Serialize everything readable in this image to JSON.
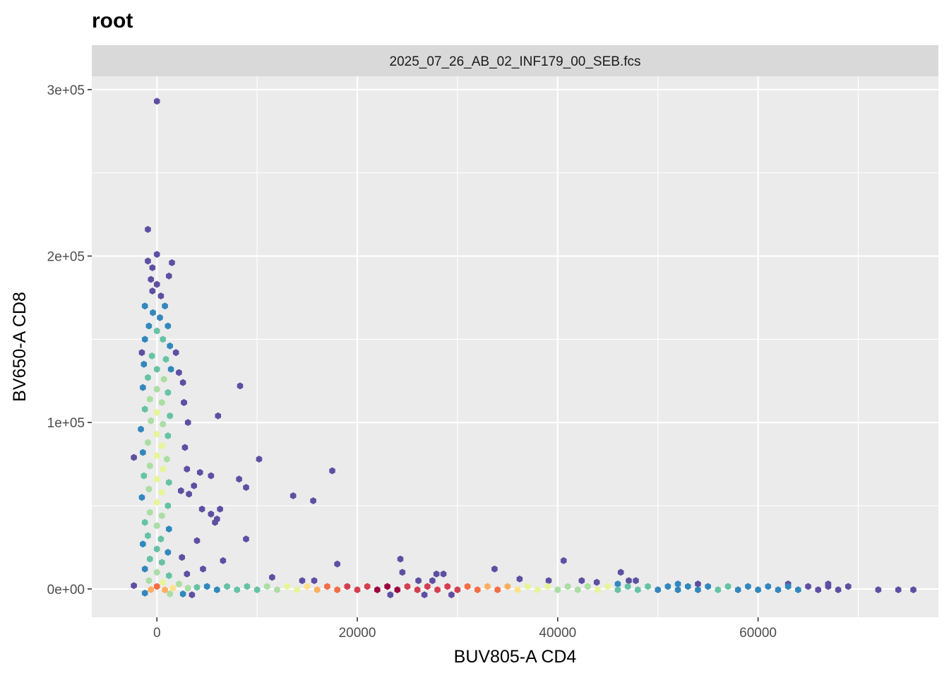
{
  "chart_data": {
    "type": "hexbin",
    "title": "root",
    "facet_label": "2025_07_26_AB_02_INF179_00_SEB.fcs",
    "xlabel": "BUV805-A CD4",
    "ylabel": "BV650-A CD8",
    "xlim": [
      -6500,
      78000
    ],
    "ylim": [
      -17000,
      308000
    ],
    "x_ticks": [
      0,
      20000,
      40000,
      60000
    ],
    "x_tick_labels": [
      "0",
      "20000",
      "40000",
      "60000"
    ],
    "y_ticks": [
      0,
      100000,
      200000,
      300000
    ],
    "y_tick_labels": [
      "0e+00",
      "1e+05",
      "2e+05",
      "3e+05"
    ],
    "grid": true,
    "legend": "none",
    "palette": [
      "#5E4FA2",
      "#3288BD",
      "#66C2A5",
      "#ABDDA4",
      "#E6F598",
      "#FEE08B",
      "#FDAE61",
      "#F46D43",
      "#D53E4F",
      "#9E0142"
    ],
    "density_scale_max": 9,
    "points": [
      [
        0,
        293000,
        0
      ],
      [
        -900,
        216000,
        0
      ],
      [
        0,
        201000,
        0
      ],
      [
        -900,
        197000,
        0
      ],
      [
        -450,
        193000,
        0
      ],
      [
        1500,
        196000,
        0
      ],
      [
        1200,
        188000,
        0
      ],
      [
        -600,
        186000,
        0
      ],
      [
        0,
        183000,
        0
      ],
      [
        -450,
        179000,
        0
      ],
      [
        400,
        176000,
        0
      ],
      [
        800,
        170000,
        1
      ],
      [
        -1200,
        170000,
        1
      ],
      [
        -400,
        166000,
        1
      ],
      [
        300,
        163000,
        1
      ],
      [
        -800,
        158000,
        1
      ],
      [
        1100,
        158000,
        1
      ],
      [
        0,
        155000,
        2
      ],
      [
        -1200,
        150000,
        1
      ],
      [
        600,
        150000,
        2
      ],
      [
        1300,
        146000,
        1
      ],
      [
        -1500,
        142000,
        0
      ],
      [
        -500,
        140000,
        2
      ],
      [
        900,
        138000,
        2
      ],
      [
        1900,
        142000,
        0
      ],
      [
        -1300,
        135000,
        1
      ],
      [
        0,
        132000,
        2
      ],
      [
        1400,
        132000,
        1
      ],
      [
        -900,
        127000,
        2
      ],
      [
        700,
        126000,
        3
      ],
      [
        2200,
        130000,
        0
      ],
      [
        -1400,
        121000,
        1
      ],
      [
        0,
        120000,
        3
      ],
      [
        1100,
        118000,
        2
      ],
      [
        -700,
        114000,
        3
      ],
      [
        500,
        112000,
        3
      ],
      [
        2700,
        112000,
        0
      ],
      [
        -1200,
        108000,
        2
      ],
      [
        0,
        106000,
        4
      ],
      [
        1300,
        104000,
        2
      ],
      [
        -600,
        101000,
        3
      ],
      [
        600,
        99000,
        3
      ],
      [
        -1600,
        96000,
        1
      ],
      [
        0,
        93000,
        4
      ],
      [
        1100,
        92000,
        2
      ],
      [
        -900,
        88000,
        3
      ],
      [
        500,
        86000,
        4
      ],
      [
        -1400,
        82000,
        1
      ],
      [
        0,
        80000,
        4
      ],
      [
        1000,
        78000,
        3
      ],
      [
        -2300,
        79000,
        0
      ],
      [
        -700,
        74000,
        3
      ],
      [
        600,
        72000,
        4
      ],
      [
        -1300,
        68000,
        2
      ],
      [
        0,
        66000,
        4
      ],
      [
        1200,
        64000,
        2
      ],
      [
        -800,
        60000,
        3
      ],
      [
        500,
        58000,
        4
      ],
      [
        2400,
        59000,
        0
      ],
      [
        -1500,
        55000,
        1
      ],
      [
        0,
        52000,
        4
      ],
      [
        1100,
        50000,
        2
      ],
      [
        -700,
        46000,
        3
      ],
      [
        500,
        44000,
        3
      ],
      [
        -1200,
        40000,
        2
      ],
      [
        0,
        38000,
        3
      ],
      [
        1200,
        36000,
        1
      ],
      [
        -900,
        32000,
        2
      ],
      [
        400,
        30000,
        2
      ],
      [
        -1400,
        27000,
        1
      ],
      [
        0,
        24000,
        2
      ],
      [
        1100,
        22000,
        1
      ],
      [
        -700,
        18000,
        2
      ],
      [
        500,
        16000,
        2
      ],
      [
        -1200,
        12000,
        1
      ],
      [
        0,
        10000,
        3
      ],
      [
        1200,
        8000,
        2
      ],
      [
        -800,
        5000,
        3
      ],
      [
        600,
        4000,
        4
      ],
      [
        2200,
        3000,
        3
      ],
      [
        -2300,
        2000,
        0
      ],
      [
        0,
        1500,
        7
      ],
      [
        -600,
        -400,
        6
      ],
      [
        800,
        -600,
        6
      ],
      [
        1600,
        500,
        5
      ],
      [
        3100,
        500,
        3
      ],
      [
        -1200,
        -2500,
        1
      ],
      [
        1300,
        -3000,
        3
      ],
      [
        2600,
        -3000,
        1
      ],
      [
        3500,
        -3500,
        0
      ],
      [
        4000,
        1000,
        2
      ],
      [
        3000,
        9000,
        0
      ],
      [
        2500,
        19000,
        0
      ],
      [
        4000,
        29000,
        0
      ],
      [
        4500,
        48000,
        0
      ],
      [
        3200,
        57000,
        0
      ],
      [
        3700,
        62000,
        0
      ],
      [
        3000,
        72000,
        0
      ],
      [
        2800,
        85000,
        0
      ],
      [
        3100,
        100000,
        0
      ],
      [
        2700,
        112000,
        0
      ],
      [
        2600,
        124000,
        0
      ],
      [
        4300,
        70000,
        0
      ],
      [
        5400,
        45000,
        0
      ],
      [
        5400,
        68000,
        0
      ],
      [
        6300,
        48000,
        0
      ],
      [
        5800,
        40000,
        0
      ],
      [
        6100,
        104000,
        0
      ],
      [
        6000,
        42000,
        0
      ],
      [
        8300,
        122000,
        0
      ],
      [
        8200,
        66000,
        0
      ],
      [
        8900,
        61000,
        0
      ],
      [
        10200,
        78000,
        0
      ],
      [
        8900,
        30000,
        0
      ],
      [
        13600,
        56000,
        0
      ],
      [
        15600,
        53000,
        0
      ],
      [
        17500,
        71000,
        0
      ],
      [
        4600,
        12000,
        0
      ],
      [
        6600,
        17000,
        0
      ],
      [
        11500,
        7000,
        0
      ],
      [
        18000,
        15000,
        0
      ],
      [
        24300,
        18000,
        0
      ],
      [
        24500,
        10000,
        0
      ],
      [
        27900,
        9000,
        0
      ],
      [
        28600,
        9000,
        0
      ],
      [
        33700,
        12000,
        0
      ],
      [
        40600,
        17000,
        0
      ],
      [
        46300,
        10000,
        0
      ],
      [
        14500,
        5000,
        0
      ],
      [
        15700,
        5000,
        0
      ],
      [
        26100,
        5000,
        0
      ],
      [
        27500,
        5000,
        0
      ],
      [
        36200,
        6000,
        0
      ],
      [
        39100,
        5000,
        0
      ],
      [
        42400,
        5000,
        0
      ],
      [
        47100,
        5000,
        0
      ],
      [
        47800,
        5000,
        0
      ],
      [
        23300,
        -3500,
        0
      ],
      [
        26700,
        -3500,
        0
      ],
      [
        29400,
        -3500,
        0
      ],
      [
        43900,
        4000,
        0
      ],
      [
        5000,
        1500,
        1
      ],
      [
        7000,
        1500,
        2
      ],
      [
        9000,
        1500,
        2
      ],
      [
        11000,
        1500,
        3
      ],
      [
        13000,
        1500,
        4
      ],
      [
        15000,
        1500,
        5
      ],
      [
        17000,
        1500,
        7
      ],
      [
        19000,
        1500,
        8
      ],
      [
        21000,
        1500,
        8
      ],
      [
        23000,
        1500,
        9
      ],
      [
        25000,
        1500,
        8
      ],
      [
        27000,
        1500,
        8
      ],
      [
        29000,
        1500,
        8
      ],
      [
        31000,
        1500,
        7
      ],
      [
        33000,
        1500,
        6
      ],
      [
        35000,
        1500,
        6
      ],
      [
        37000,
        1500,
        4
      ],
      [
        39000,
        1500,
        4
      ],
      [
        41000,
        1500,
        3
      ],
      [
        43000,
        1500,
        3
      ],
      [
        45000,
        1500,
        4
      ],
      [
        47000,
        1500,
        2
      ],
      [
        49000,
        1500,
        2
      ],
      [
        51000,
        1500,
        1
      ],
      [
        53000,
        1500,
        1
      ],
      [
        55000,
        1500,
        1
      ],
      [
        57000,
        1500,
        2
      ],
      [
        59000,
        1500,
        1
      ],
      [
        61000,
        1500,
        1
      ],
      [
        63000,
        1500,
        1
      ],
      [
        65000,
        1500,
        0
      ],
      [
        67000,
        1500,
        0
      ],
      [
        69000,
        1500,
        0
      ],
      [
        6000,
        -500,
        1
      ],
      [
        8000,
        -500,
        2
      ],
      [
        10000,
        -500,
        2
      ],
      [
        12000,
        -500,
        3
      ],
      [
        14000,
        -500,
        4
      ],
      [
        16000,
        -500,
        6
      ],
      [
        18000,
        -500,
        7
      ],
      [
        20000,
        -500,
        8
      ],
      [
        22000,
        -500,
        9
      ],
      [
        24000,
        -500,
        9
      ],
      [
        26000,
        -500,
        8
      ],
      [
        28000,
        -500,
        8
      ],
      [
        30000,
        -500,
        8
      ],
      [
        32000,
        -500,
        7
      ],
      [
        34000,
        -500,
        7
      ],
      [
        36000,
        -500,
        5
      ],
      [
        38000,
        -500,
        4
      ],
      [
        40000,
        -500,
        3
      ],
      [
        42000,
        -500,
        3
      ],
      [
        44000,
        -500,
        4
      ],
      [
        46000,
        -500,
        2
      ],
      [
        48000,
        -500,
        2
      ],
      [
        50000,
        -500,
        1
      ],
      [
        52000,
        -500,
        1
      ],
      [
        54000,
        -500,
        1
      ],
      [
        56000,
        -500,
        2
      ],
      [
        58000,
        -500,
        1
      ],
      [
        60000,
        -500,
        1
      ],
      [
        62000,
        -500,
        1
      ],
      [
        64000,
        -500,
        1
      ],
      [
        66000,
        -500,
        0
      ],
      [
        68000,
        -500,
        0
      ],
      [
        72000,
        -500,
        0
      ],
      [
        74000,
        -500,
        0
      ],
      [
        75500,
        -500,
        0
      ],
      [
        63000,
        3000,
        0
      ],
      [
        67000,
        3000,
        0
      ],
      [
        52000,
        3000,
        1
      ],
      [
        54000,
        3000,
        0
      ],
      [
        46000,
        3000,
        1
      ]
    ]
  }
}
